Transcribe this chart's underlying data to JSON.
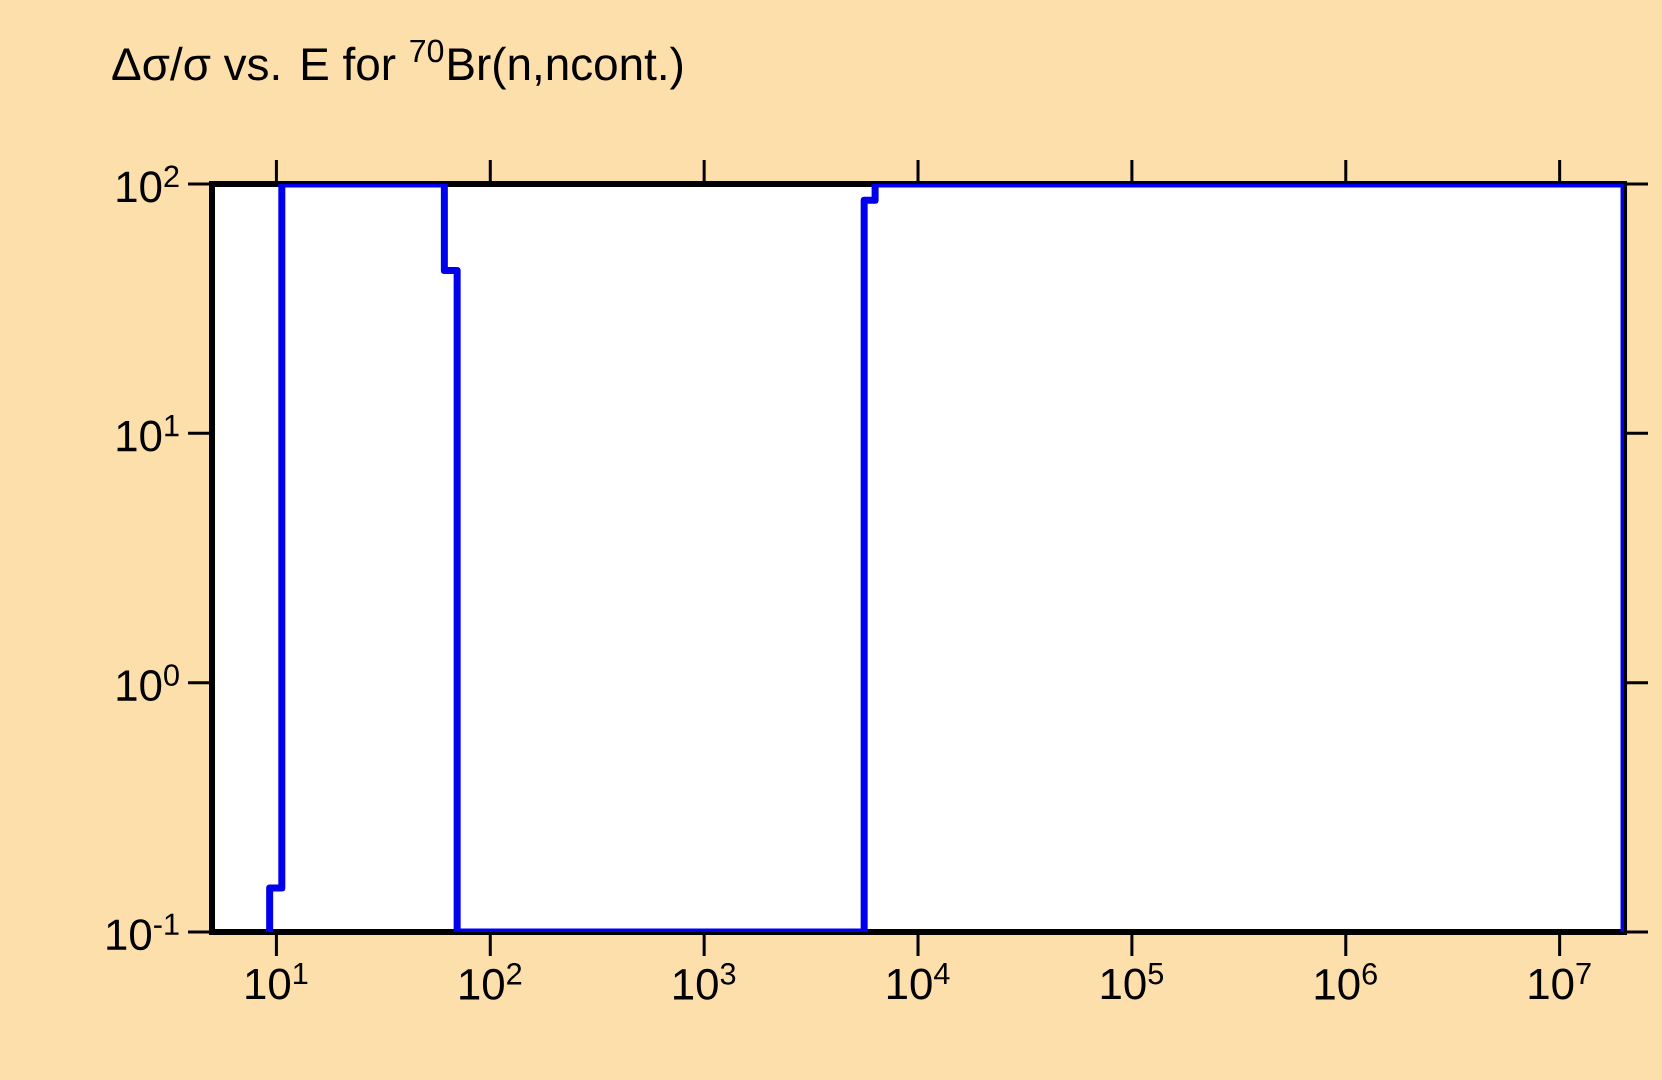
{
  "chart_data": {
    "type": "step",
    "title": "Δσ/σ vs. E for $^{70}$Br(n,ncont.)",
    "log": "xy",
    "grid": false,
    "marker": "none",
    "line_style": "solid",
    "xlim": [
      5,
      20000000
    ],
    "ylim": [
      0.1,
      100
    ],
    "xticks": [
      {
        "value": 10,
        "label": "10$^{1}$"
      },
      {
        "value": 100,
        "label": "10$^{2}$"
      },
      {
        "value": 1000,
        "label": "10$^{3}$"
      },
      {
        "value": 10000,
        "label": "10$^{4}$"
      },
      {
        "value": 100000,
        "label": "10$^{5}$"
      },
      {
        "value": 1000000,
        "label": "10$^{6}$"
      },
      {
        "value": 10000000,
        "label": "10$^{7}$"
      }
    ],
    "yticks": [
      {
        "value": 0.1,
        "label": "10$^{-1}$"
      },
      {
        "value": 1,
        "label": "10$^{0}$"
      },
      {
        "value": 10,
        "label": "10$^{1}$"
      },
      {
        "value": 100,
        "label": "10$^{2}$"
      }
    ],
    "series": [
      {
        "color": "#0000ee",
        "x": [
          9.3,
          9.3,
          10.6,
          61,
          70,
          5600,
          6300,
          20000000
        ],
        "values": [
          0.1,
          0.15,
          100,
          45,
          0.1,
          86,
          100,
          0.1
        ]
      }
    ]
  }
}
